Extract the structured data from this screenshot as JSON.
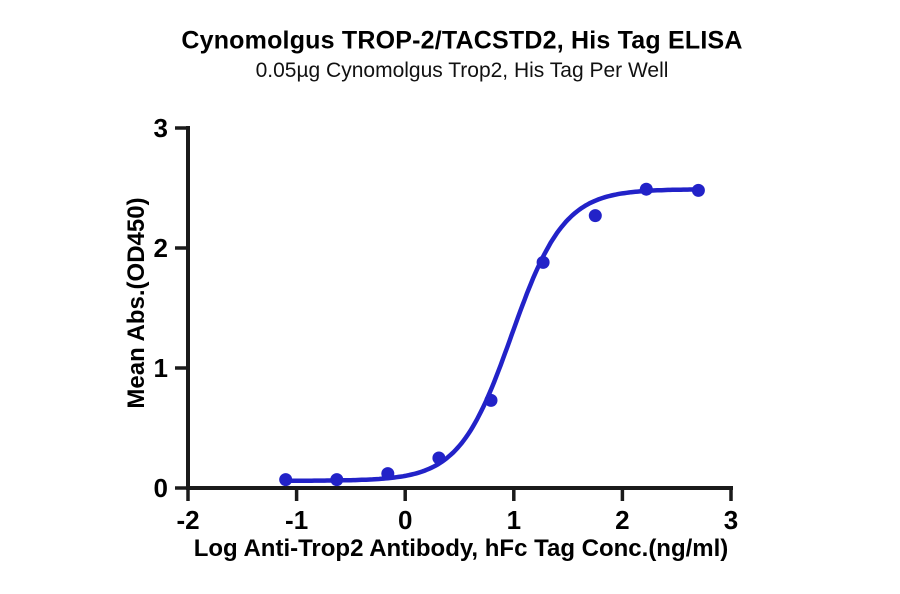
{
  "chart_data": {
    "type": "scatter",
    "title": "Cynomolgus TROP-2/TACSTD2, His Tag ELISA",
    "subtitle": "0.05µg Cynomolgus Trop2, His Tag Per Well",
    "xlabel": "Log Anti-Trop2 Antibody, hFc Tag Conc.(ng/ml)",
    "ylabel": "Mean Abs.(OD450)",
    "xlim": [
      -2,
      3
    ],
    "ylim": [
      0,
      3
    ],
    "x_ticks": [
      "-2",
      "-1",
      "0",
      "1",
      "2",
      "3"
    ],
    "x_tick_values": [
      -2,
      -1,
      0,
      1,
      2,
      3
    ],
    "y_ticks": [
      "0",
      "1",
      "2",
      "3"
    ],
    "y_tick_values": [
      0,
      1,
      2,
      3
    ],
    "grid": false,
    "legend": false,
    "series": [
      {
        "x": [
          -1.1,
          -0.63,
          -0.16,
          0.31,
          0.79,
          1.27,
          1.75,
          2.22,
          2.7
        ],
        "y": [
          0.07,
          0.07,
          0.12,
          0.25,
          0.73,
          1.88,
          2.27,
          2.49,
          2.48
        ],
        "marker": "circle",
        "fit_curve": {
          "model": "4PL",
          "bottom": 0.06,
          "top": 2.49,
          "log_ec50": 0.98,
          "hill": 1.8
        }
      }
    ]
  },
  "colors": {
    "curve": "#2222c8",
    "axis": "#1a1a1a",
    "text": "#000000",
    "background": "#ffffff"
  }
}
